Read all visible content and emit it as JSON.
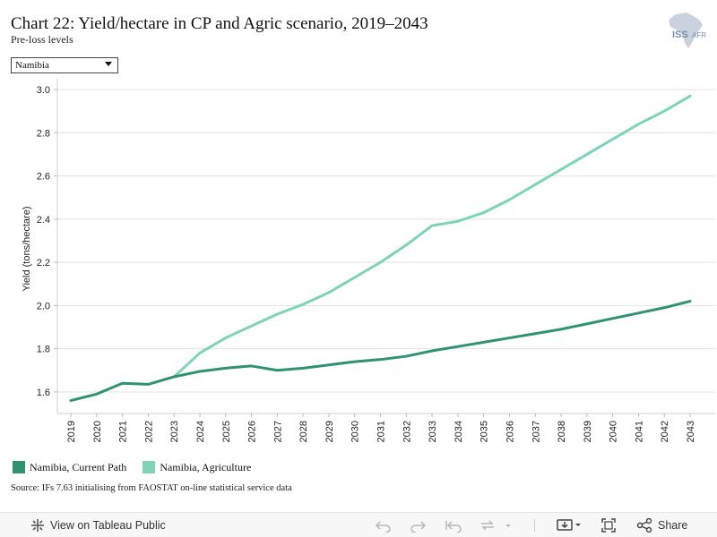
{
  "header": {
    "title": "Chart 22: Yield/hectare in CP and Agric scenario, 2019–2043",
    "subtitle": "Pre-loss levels"
  },
  "logo": {
    "text_iss": "ISS",
    "text_afr": "AFR",
    "color": "#7a8fb0"
  },
  "filter": {
    "selected": "Namibia"
  },
  "legend": {
    "items": [
      {
        "label": "Namibia, Current Path",
        "color": "#2f9270"
      },
      {
        "label": "Namibia, Agriculture",
        "color": "#7fd4b6"
      }
    ]
  },
  "source": "Source: IFs 7.63 initialising from FAOSTAT on-line statistical service data",
  "toolbar": {
    "view_label": "View on Tableau Public",
    "share_label": "Share"
  },
  "chart_data": {
    "type": "line",
    "title": "",
    "xlabel": "",
    "ylabel": "Yield (tons/hectare)",
    "ylim": [
      1.5,
      3.05
    ],
    "yticks": [
      1.6,
      1.8,
      2.0,
      2.2,
      2.4,
      2.6,
      2.8,
      3.0
    ],
    "ytick_labels": [
      "1.6",
      "1.8",
      "2.0",
      "2.2",
      "2.4",
      "2.6",
      "2.8",
      "3.0"
    ],
    "grid": true,
    "legend_position": "bottom-left",
    "x": [
      "2019",
      "2020",
      "2021",
      "2022",
      "2023",
      "2024",
      "2025",
      "2026",
      "2027",
      "2028",
      "2029",
      "2030",
      "2031",
      "2032",
      "2033",
      "2034",
      "2035",
      "2036",
      "2037",
      "2038",
      "2039",
      "2040",
      "2041",
      "2042",
      "2043"
    ],
    "series": [
      {
        "name": "Namibia, Current Path",
        "color": "#2f9270",
        "values": [
          1.56,
          1.59,
          1.64,
          1.635,
          1.67,
          1.695,
          1.71,
          1.72,
          1.7,
          1.71,
          1.725,
          1.74,
          1.75,
          1.765,
          1.79,
          1.81,
          1.83,
          1.85,
          1.87,
          1.89,
          1.915,
          1.94,
          1.965,
          1.99,
          2.02
        ]
      },
      {
        "name": "Namibia, Agriculture",
        "color": "#7fd4b6",
        "values": [
          null,
          null,
          null,
          null,
          1.67,
          1.78,
          1.85,
          1.905,
          1.96,
          2.005,
          2.06,
          2.13,
          2.2,
          2.28,
          2.37,
          2.39,
          2.43,
          2.49,
          2.56,
          2.63,
          2.7,
          2.77,
          2.84,
          2.9,
          2.97
        ]
      }
    ]
  }
}
